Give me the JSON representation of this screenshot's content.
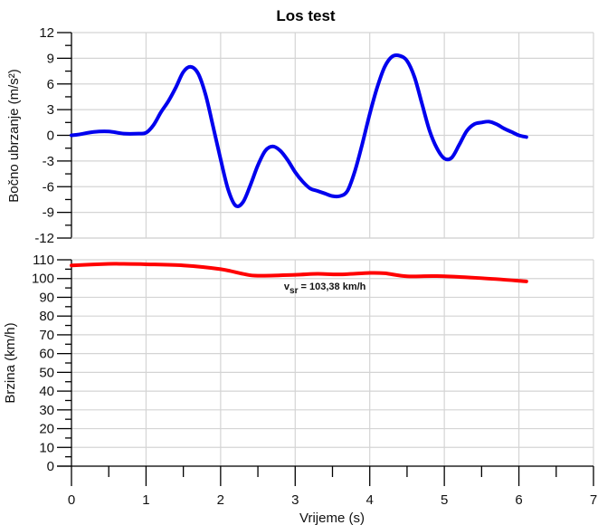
{
  "title": "Los test",
  "chart_data": [
    {
      "type": "line",
      "title": "Los test",
      "xlabel": "",
      "ylabel": "Bočno ubrzanje (m/s²)",
      "xlim": [
        0,
        7
      ],
      "ylim": [
        -12,
        12
      ],
      "yticks": [
        "12",
        "9",
        "6",
        "3",
        "0",
        "-3",
        "-6",
        "-9",
        "-12"
      ],
      "grid": true,
      "series": [
        {
          "name": "Bočno ubrzanje",
          "color": "#0000ee",
          "x": [
            0,
            0.1,
            0.3,
            0.5,
            0.7,
            0.9,
            1.0,
            1.1,
            1.2,
            1.3,
            1.4,
            1.5,
            1.6,
            1.7,
            1.8,
            1.9,
            2.0,
            2.1,
            2.2,
            2.3,
            2.4,
            2.5,
            2.6,
            2.7,
            2.8,
            2.9,
            3.0,
            3.1,
            3.2,
            3.3,
            3.4,
            3.5,
            3.6,
            3.7,
            3.8,
            3.9,
            4.0,
            4.1,
            4.2,
            4.3,
            4.4,
            4.5,
            4.6,
            4.7,
            4.8,
            4.9,
            5.0,
            5.1,
            5.2,
            5.3,
            5.4,
            5.5,
            5.6,
            5.7,
            5.8,
            5.9,
            6.0,
            6.1
          ],
          "y": [
            0,
            0.1,
            0.4,
            0.45,
            0.2,
            0.2,
            0.3,
            1.2,
            2.7,
            4.0,
            5.6,
            7.4,
            8.0,
            7.2,
            4.7,
            1.0,
            -2.8,
            -6.3,
            -8.2,
            -7.8,
            -5.8,
            -3.5,
            -1.8,
            -1.3,
            -1.8,
            -2.9,
            -4.3,
            -5.4,
            -6.2,
            -6.5,
            -6.8,
            -7.1,
            -7.1,
            -6.5,
            -4.2,
            -1.0,
            2.5,
            5.6,
            8.0,
            9.2,
            9.3,
            8.7,
            6.8,
            3.7,
            0.6,
            -1.5,
            -2.7,
            -2.6,
            -1.1,
            0.5,
            1.3,
            1.5,
            1.6,
            1.3,
            0.8,
            0.4,
            0.0,
            -0.2
          ]
        }
      ]
    },
    {
      "type": "line",
      "xlabel": "Vrijeme (s)",
      "ylabel": "Brzina (km/h)",
      "xlim": [
        0,
        7
      ],
      "ylim": [
        0,
        110
      ],
      "xticks": [
        "0",
        "1",
        "2",
        "3",
        "4",
        "5",
        "6",
        "7"
      ],
      "yticks": [
        "110",
        "100",
        "90",
        "80",
        "70",
        "60",
        "50",
        "40",
        "30",
        "20",
        "10",
        "0"
      ],
      "grid": true,
      "annotation": {
        "prefix": "v",
        "subscript": "sr",
        "text": " = 103,38 km/h",
        "x": 2.85,
        "y": 94
      },
      "series": [
        {
          "name": "Brzina",
          "color": "#ff0000",
          "x": [
            0,
            0.5,
            0.7,
            1.0,
            1.5,
            2.0,
            2.3,
            2.5,
            3.0,
            3.3,
            3.6,
            4.0,
            4.2,
            4.5,
            4.9,
            5.5,
            6.1
          ],
          "y": [
            107,
            107.8,
            107.8,
            107.6,
            107,
            105,
            102.5,
            101.5,
            102,
            102.5,
            102.2,
            103,
            102.8,
            101.2,
            101.3,
            100.2,
            98.5
          ]
        }
      ]
    }
  ]
}
